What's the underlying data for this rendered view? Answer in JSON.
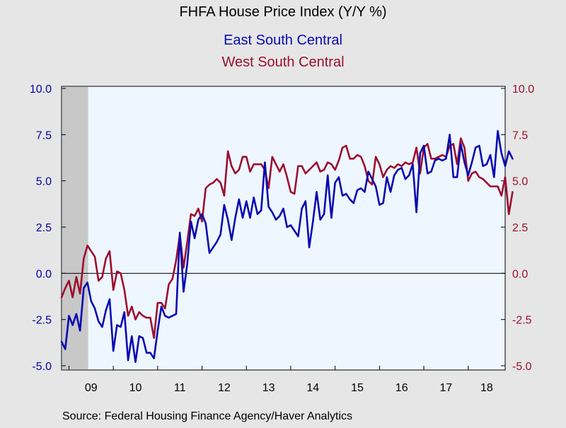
{
  "chart_data": {
    "type": "line",
    "title": "FHFA House Price Index (Y/Y %)",
    "source": "Source:  Federal Housing Finance Agency/Haver Analytics",
    "x_start": "2008-11",
    "x_end": "2018-11",
    "x_ticks": [
      "09",
      "10",
      "11",
      "12",
      "13",
      "14",
      "15",
      "16",
      "17",
      "18"
    ],
    "y_left_ticks": [
      "10.0",
      "7.5",
      "5.0",
      "2.5",
      "0.0",
      "-2.5",
      "-5.0"
    ],
    "y_right_ticks": [
      "10.0",
      "7.5",
      "5.0",
      "2.5",
      "0.0",
      "-2.5",
      "-5.0"
    ],
    "ylim": [
      -5,
      10
    ],
    "recession_shade": [
      "2008-11",
      "2009-06"
    ],
    "zero_line": true,
    "grid": false,
    "colors": {
      "background": "#e6e6e6",
      "plot_bg": "#eef6ff",
      "axis_left": "#0000a8",
      "axis_right": "#9c0f2f",
      "recession": "#c8c8c8"
    },
    "series": [
      {
        "name": "East South Central",
        "color": "#0a0ab0",
        "values": [
          -3.7,
          -4.1,
          -2.3,
          -2.8,
          -2.2,
          -3.1,
          -0.8,
          -0.5,
          -1.5,
          -1.9,
          -2.6,
          -2.9,
          -2.0,
          -1.4,
          -4.2,
          -2.8,
          -2.9,
          -2.1,
          -4.7,
          -3.4,
          -4.8,
          -3.4,
          -3.5,
          -4.3,
          -4.3,
          -4.6,
          -3.1,
          -1.8,
          -2.3,
          -2.4,
          -2.3,
          -2.2,
          2.2,
          -1.0,
          0.5,
          2.8,
          1.9,
          2.9,
          3.2,
          2.7,
          1.1,
          1.4,
          1.7,
          2.1,
          3.7,
          2.9,
          1.8,
          3.0,
          4.0,
          3.0,
          3.9,
          3.0,
          4.1,
          3.2,
          3.4,
          6.0,
          3.6,
          3.3,
          2.9,
          3.1,
          3.5,
          2.5,
          2.6,
          2.3,
          2.0,
          3.5,
          3.9,
          1.4,
          2.8,
          4.4,
          2.9,
          3.2,
          5.3,
          3.0,
          4.9,
          5.2,
          4.2,
          4.3,
          4.0,
          3.8,
          4.5,
          4.6,
          4.4,
          5.5,
          5.1,
          4.7,
          3.7,
          3.8,
          5.2,
          4.4,
          5.3,
          5.6,
          5.7,
          5.1,
          5.3,
          5.9,
          3.3,
          6.5,
          6.9,
          5.4,
          5.5,
          6.1,
          6.2,
          6.1,
          6.2,
          7.5,
          5.2,
          5.2,
          7.0,
          6.0,
          5.3,
          6.0,
          6.8,
          6.9,
          5.8,
          5.9,
          6.4,
          5.2,
          7.7,
          6.5,
          5.8,
          6.6,
          6.2
        ]
      },
      {
        "name": "West South Central",
        "color": "#9c0f2f",
        "values": [
          -1.3,
          -0.8,
          -0.4,
          -1.3,
          -0.2,
          -1.1,
          0.8,
          1.5,
          1.2,
          0.9,
          -0.4,
          -0.2,
          0.8,
          1.2,
          -0.9,
          0.1,
          0.0,
          -0.9,
          -2.3,
          -1.8,
          -2.5,
          -2.1,
          -2.3,
          -2.4,
          -2.4,
          -3.5,
          -1.6,
          -1.6,
          -1.9,
          -0.6,
          -0.3,
          0.7,
          2.1,
          0.3,
          1.7,
          3.2,
          3.1,
          3.5,
          2.8,
          4.6,
          4.8,
          4.9,
          5.1,
          4.9,
          4.2,
          6.6,
          5.8,
          5.4,
          5.6,
          6.3,
          6.3,
          5.5,
          5.9,
          5.9,
          5.9,
          5.6,
          4.6,
          6.3,
          5.9,
          5.5,
          5.9,
          5.2,
          4.4,
          4.3,
          5.8,
          5.8,
          5.4,
          5.6,
          5.8,
          6.0,
          5.5,
          5.6,
          6.0,
          5.9,
          5.6,
          6.1,
          6.8,
          6.9,
          6.2,
          6.2,
          6.4,
          6.3,
          5.8,
          5.0,
          4.8,
          6.3,
          5.9,
          5.2,
          5.6,
          5.8,
          5.7,
          5.9,
          5.8,
          6.0,
          5.9,
          6.0,
          6.8,
          5.4,
          6.8,
          7.0,
          6.2,
          6.2,
          6.3,
          6.4,
          6.3,
          6.9,
          7.0,
          5.9,
          7.3,
          6.8,
          5.0,
          5.4,
          5.5,
          5.2,
          5.1,
          4.9,
          4.7,
          4.7,
          4.7,
          4.2,
          5.2,
          3.2,
          4.4
        ]
      }
    ]
  }
}
